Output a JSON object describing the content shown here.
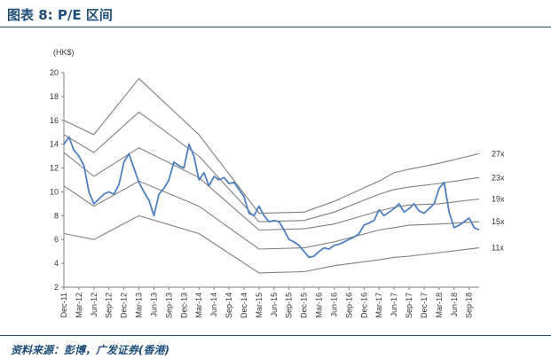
{
  "header": {
    "title": "图表 8: P/E 区间"
  },
  "footer": {
    "source": "资料来源：彭博，广发证券(香港)"
  },
  "chart_data": {
    "type": "line",
    "title": "图表 8: P/E 区间",
    "ylabel": "(HK$)",
    "xlabel": "",
    "ylim": [
      2,
      20
    ],
    "yticks": [
      2,
      4,
      6,
      8,
      10,
      12,
      14,
      16,
      18,
      20
    ],
    "grid": false,
    "x_range": [
      "2011-12",
      "2018-11"
    ],
    "x_tick_labels": [
      "Dec-11",
      "Mar-12",
      "Jun-12",
      "Sep-12",
      "Dec-12",
      "Mar-13",
      "Jun-13",
      "Sep-13",
      "Dec-13",
      "Mar-14",
      "Jun-14",
      "Sep-14",
      "Dec-14",
      "Mar-15",
      "Jun-15",
      "Sep-15",
      "Dec-15",
      "Mar-16",
      "Jun-16",
      "Sep-16",
      "Dec-16",
      "Mar-17",
      "Jun-17",
      "Sep-17",
      "Dec-17",
      "Mar-18",
      "Jun-18",
      "Sep-18"
    ],
    "price_series": {
      "color": "#4f7fbf",
      "x": [
        "2011-12",
        "2012-01",
        "2012-02",
        "2012-03",
        "2012-04",
        "2012-05",
        "2012-06",
        "2012-07",
        "2012-08",
        "2012-09",
        "2012-10",
        "2012-11",
        "2012-12",
        "2013-01",
        "2013-02",
        "2013-03",
        "2013-04",
        "2013-05",
        "2013-06",
        "2013-07",
        "2013-08",
        "2013-09",
        "2013-10",
        "2013-11",
        "2013-12",
        "2014-01",
        "2014-02",
        "2014-03",
        "2014-04",
        "2014-05",
        "2014-06",
        "2014-07",
        "2014-08",
        "2014-09",
        "2014-10",
        "2014-11",
        "2014-12",
        "2015-01",
        "2015-02",
        "2015-03",
        "2015-04",
        "2015-05",
        "2015-06",
        "2015-07",
        "2015-08",
        "2015-09",
        "2015-10",
        "2015-11",
        "2015-12",
        "2016-01",
        "2016-02",
        "2016-03",
        "2016-04",
        "2016-05",
        "2016-06",
        "2016-07",
        "2016-08",
        "2016-09",
        "2016-10",
        "2016-11",
        "2016-12",
        "2017-01",
        "2017-02",
        "2017-03",
        "2017-04",
        "2017-05",
        "2017-06",
        "2017-07",
        "2017-08",
        "2017-09",
        "2017-10",
        "2017-11",
        "2017-12",
        "2018-01",
        "2018-02",
        "2018-03",
        "2018-04",
        "2018-05",
        "2018-06",
        "2018-07",
        "2018-08",
        "2018-09",
        "2018-10",
        "2018-11"
      ],
      "values": [
        14.0,
        14.6,
        13.5,
        13.0,
        12.2,
        10.0,
        9.0,
        9.4,
        9.8,
        10.0,
        9.8,
        10.6,
        12.5,
        13.2,
        12.0,
        10.8,
        10.0,
        9.3,
        8.0,
        9.8,
        10.3,
        11.0,
        12.5,
        12.2,
        12.0,
        14.0,
        13.0,
        11.0,
        11.6,
        10.5,
        11.3,
        11.0,
        11.2,
        10.7,
        10.8,
        10.2,
        9.6,
        8.2,
        8.0,
        8.8,
        8.0,
        7.5,
        7.6,
        7.5,
        6.8,
        6.0,
        5.8,
        5.5,
        5.0,
        4.5,
        4.6,
        5.0,
        5.3,
        5.2,
        5.5,
        5.6,
        5.8,
        6.0,
        6.2,
        6.5,
        7.2,
        7.4,
        7.6,
        8.5,
        8.0,
        8.3,
        8.6,
        9.0,
        8.3,
        8.6,
        9.0,
        8.4,
        8.2,
        8.6,
        9.0,
        10.3,
        10.8,
        8.3,
        7.0,
        7.2,
        7.5,
        7.8,
        7.0,
        6.8
      ]
    },
    "band_series": [
      {
        "name": "27x",
        "color": "#7f7f7f",
        "values": [
          16.0,
          14.8,
          19.5,
          14.8,
          8.2,
          8.3,
          9.2,
          10.9,
          11.6,
          11.9,
          12.4,
          13.2
        ]
      },
      {
        "name": "23x",
        "color": "#7f7f7f",
        "values": [
          14.8,
          13.3,
          16.7,
          13.0,
          7.5,
          7.6,
          8.3,
          9.8,
          10.2,
          10.4,
          10.7,
          11.2
        ]
      },
      {
        "name": "19x",
        "color": "#7f7f7f",
        "values": [
          13.3,
          11.3,
          13.7,
          11.2,
          6.8,
          6.9,
          7.3,
          8.4,
          8.7,
          8.9,
          9.0,
          9.4
        ]
      },
      {
        "name": "15x",
        "color": "#7f7f7f",
        "values": [
          10.5,
          8.8,
          10.9,
          8.8,
          5.2,
          5.3,
          5.8,
          6.8,
          7.0,
          7.2,
          7.3,
          7.5
        ]
      },
      {
        "name": "11x",
        "color": "#7f7f7f",
        "values": [
          6.5,
          6.0,
          8.0,
          6.5,
          3.2,
          3.3,
          3.8,
          4.3,
          4.5,
          4.6,
          4.9,
          5.3
        ]
      }
    ],
    "band_x": [
      "2011-12",
      "2012-06",
      "2013-03",
      "2014-03",
      "2015-03",
      "2015-12",
      "2016-06",
      "2017-03",
      "2017-06",
      "2017-09",
      "2018-03",
      "2018-11"
    ]
  }
}
